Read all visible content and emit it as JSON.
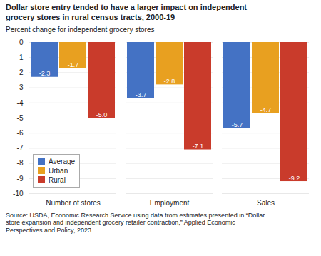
{
  "chart_data": {
    "type": "bar",
    "title": "Dollar store entry tended to have a larger impact on independent\ngrocery stores in rural census tracts, 2000-19",
    "ylabel": "Percent change for independent grocery stores",
    "source": "Source: USDA, Economic Research Service using data from estimates presented in “Dollar\nstore expansion and independent grocery retailer contraction,” Applied Economic\nPerspectives and Policy, 2023.",
    "categories": [
      "Number of stores",
      "Employment",
      "Sales"
    ],
    "series": [
      {
        "name": "Average",
        "color": "#4472C4",
        "values": [
          -2.3,
          -3.7,
          -5.7
        ]
      },
      {
        "name": "Urban",
        "color": "#E8A020",
        "values": [
          -1.7,
          -2.8,
          -4.7
        ]
      },
      {
        "name": "Rural",
        "color": "#C93B2B",
        "values": [
          -5.0,
          -7.1,
          -9.2
        ],
        "value_labels": [
          "-5.0",
          "-7.1",
          "-9.2"
        ]
      }
    ],
    "ylim": [
      -10,
      0
    ],
    "yticks": [
      0,
      -1,
      -2,
      -3,
      -4,
      -5,
      -6,
      -7,
      -8,
      -9,
      -10
    ],
    "grid": true,
    "legend": "lower left",
    "data_labels": true
  }
}
